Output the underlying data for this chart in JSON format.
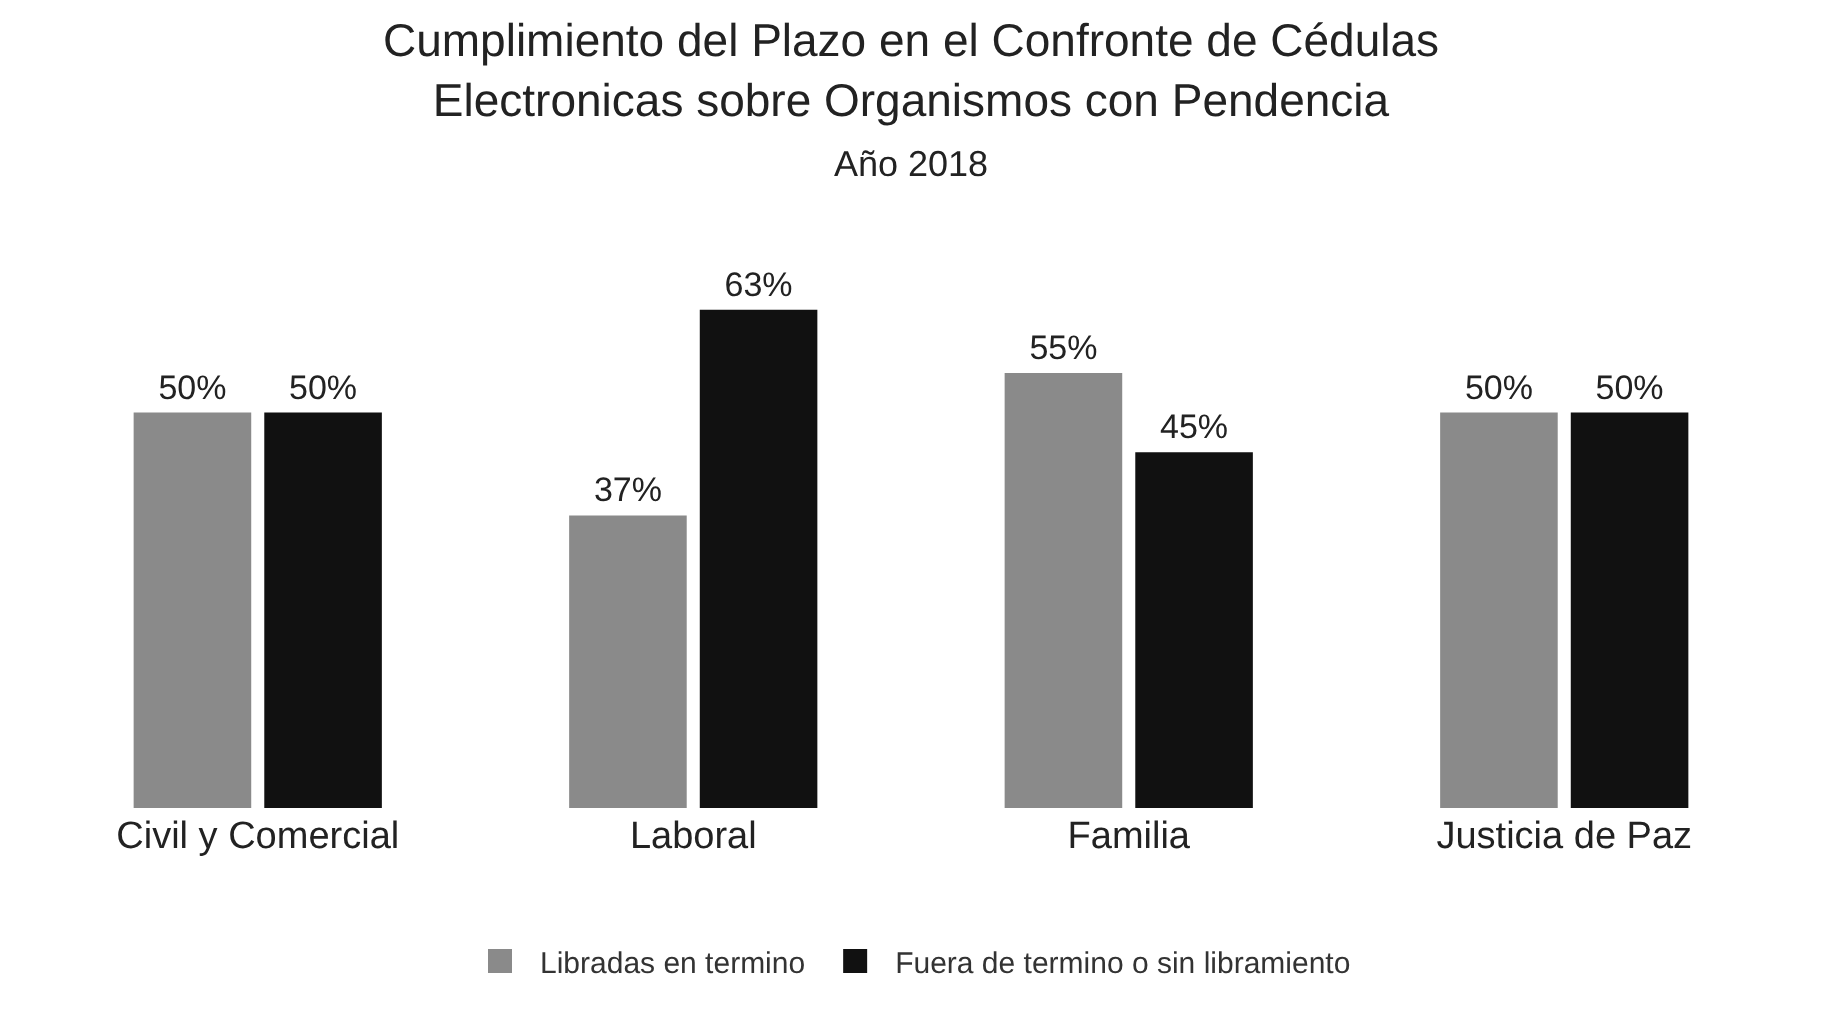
{
  "chart_data": {
    "type": "bar",
    "title": "Cumplimiento del Plazo en el Confronte de Cédulas Electronicas sobre Organismos con Pendencia",
    "subtitle": "Año 2018",
    "categories": [
      "Civil y Comercial",
      "Laboral",
      "Familia",
      "Justicia de Paz"
    ],
    "series": [
      {
        "name": "Libradas en termino",
        "color": "#8a8a8a",
        "values": [
          50,
          37,
          55,
          50
        ],
        "value_labels": [
          "50%",
          "37%",
          "55%",
          "50%"
        ]
      },
      {
        "name": "Fuera de termino o sin libramiento",
        "color": "#111111",
        "values": [
          50,
          63,
          45,
          50
        ],
        "value_labels": [
          "50%",
          "63%",
          "45%",
          "50%"
        ]
      }
    ],
    "grid": false,
    "legend": "bottom"
  }
}
